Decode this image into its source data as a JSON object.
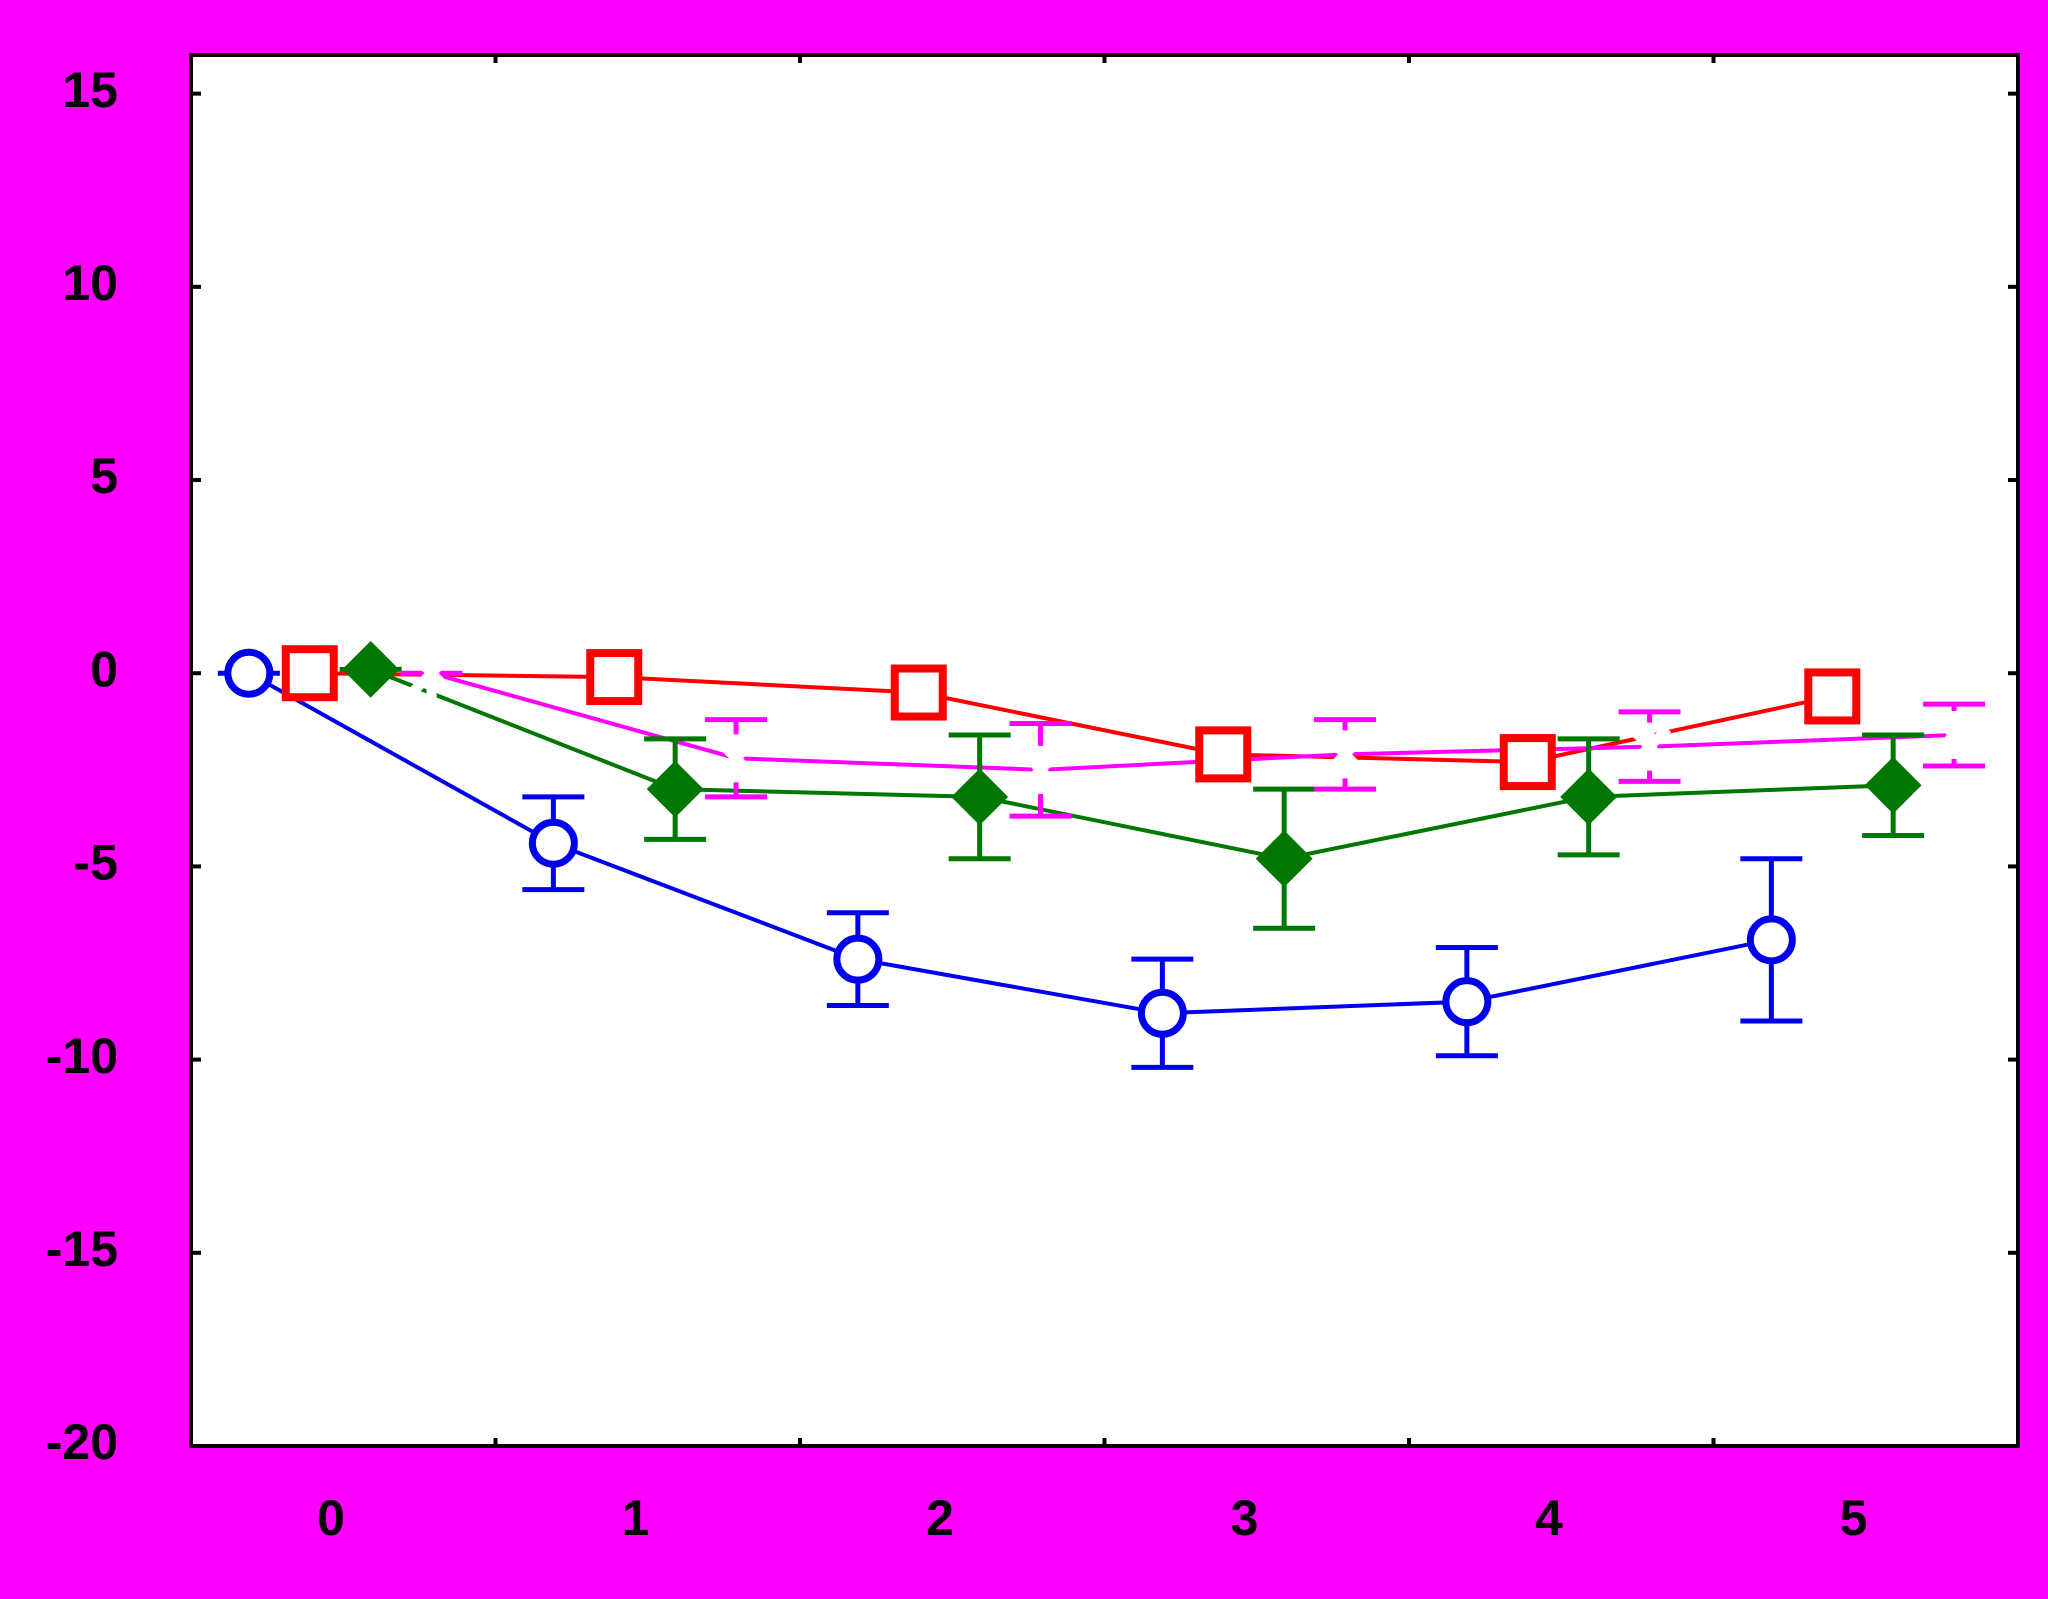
{
  "chart_data": {
    "type": "line",
    "categories": [
      "0",
      "1",
      "2",
      "3",
      "4",
      "5"
    ],
    "ylim": [
      -20,
      16
    ],
    "yticks": [
      -20,
      -15,
      -10,
      -5,
      0,
      5,
      10,
      15
    ],
    "series": [
      {
        "color": "#0000ee",
        "marker": "circle",
        "values": [
          0,
          -4.4,
          -7.4,
          -8.8,
          -8.5,
          -6.9
        ],
        "errors": [
          0,
          1.2,
          1.2,
          1.4,
          1.4,
          2.1
        ]
      },
      {
        "color": "#ff0000",
        "marker": "square",
        "values": [
          0,
          -0.1,
          -0.5,
          -2.1,
          -2.3,
          -0.6
        ]
      },
      {
        "color": "#007700",
        "marker": "diamond",
        "values": [
          0.1,
          -3.0,
          -3.2,
          -4.8,
          -3.2,
          -2.9
        ],
        "errors": [
          0,
          1.3,
          1.6,
          1.8,
          1.5,
          1.3
        ]
      },
      {
        "color": "#ff00ff",
        "marker": "star",
        "values": [
          0,
          -2.2,
          -2.5,
          -2.1,
          -1.9,
          -1.6
        ],
        "errors": [
          0,
          1.0,
          1.2,
          0.9,
          0.9,
          0.8
        ]
      }
    ]
  }
}
